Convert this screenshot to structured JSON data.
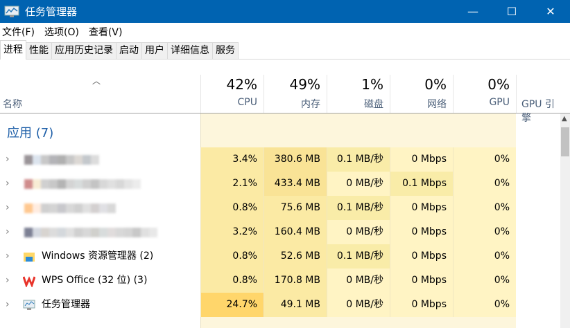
{
  "window": {
    "title": "任务管理器",
    "minimize": "—",
    "maximize": "☐",
    "close": "✕"
  },
  "menu": [
    "文件(F)",
    "选项(O)",
    "查看(V)"
  ],
  "tabs": [
    "进程",
    "性能",
    "应用历史记录",
    "启动",
    "用户",
    "详细信息",
    "服务"
  ],
  "header": {
    "name": "名称",
    "cpu_pct": "42%",
    "cpu": "CPU",
    "mem_pct": "49%",
    "mem": "内存",
    "disk_pct": "1%",
    "disk": "磁盘",
    "net_pct": "0%",
    "net": "网络",
    "gpu_pct": "0%",
    "gpu": "GPU",
    "gpu_engine": "GPU 引擎"
  },
  "group": "应用 (7)",
  "colors": {
    "titlebar": "#0063b1",
    "cell_light": "#fff4c4",
    "cell_mid": "#f9eca8",
    "cell_high": "#ffd66b",
    "group_bg": "#fdf6dc"
  },
  "rows": [
    {
      "name": "",
      "icon": "blurred-app-icon",
      "cpu": "3.4%",
      "mem": "380.6 MB",
      "disk": "0.1 MB/秒",
      "net": "0 Mbps",
      "gpu": "0%"
    },
    {
      "name": "",
      "icon": "blurred-app-icon",
      "cpu": "2.1%",
      "mem": "433.4 MB",
      "disk": "0 MB/秒",
      "net": "0.1 Mbps",
      "gpu": "0%"
    },
    {
      "name": "",
      "icon": "blurred-app-icon",
      "cpu": "0.8%",
      "mem": "75.6 MB",
      "disk": "0.1 MB/秒",
      "net": "0 Mbps",
      "gpu": "0%"
    },
    {
      "name": "",
      "icon": "blurred-app-icon",
      "cpu": "3.2%",
      "mem": "160.4 MB",
      "disk": "0 MB/秒",
      "net": "0 Mbps",
      "gpu": "0%"
    },
    {
      "name": "Windows 资源管理器 (2)",
      "icon": "folder-icon",
      "cpu": "0.8%",
      "mem": "52.6 MB",
      "disk": "0.1 MB/秒",
      "net": "0 Mbps",
      "gpu": "0%"
    },
    {
      "name": "WPS Office (32 位) (3)",
      "icon": "wps-icon",
      "cpu": "0.8%",
      "mem": "170.8 MB",
      "disk": "0 MB/秒",
      "net": "0 Mbps",
      "gpu": "0%"
    },
    {
      "name": "任务管理器",
      "icon": "task-manager-icon",
      "cpu": "24.7%",
      "mem": "49.1 MB",
      "disk": "0 MB/秒",
      "net": "0 Mbps",
      "gpu": "0%"
    }
  ]
}
